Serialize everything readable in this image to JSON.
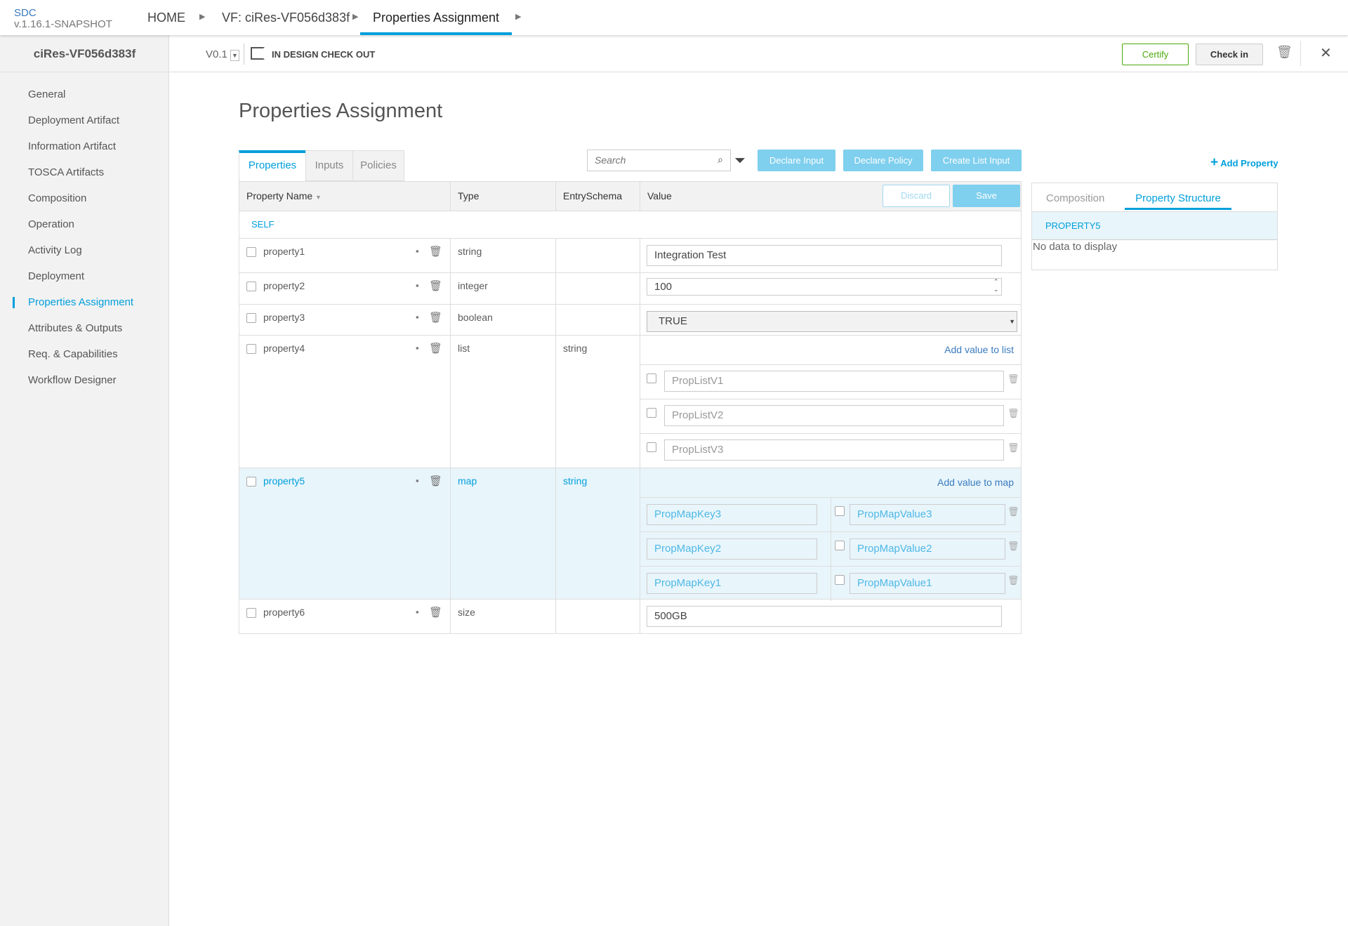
{
  "app": {
    "name": "SDC",
    "version": "v.1.16.1-SNAPSHOT"
  },
  "breadcrumb": [
    "HOME",
    "VF: ciRes-VF056d383f",
    "Properties Assignment"
  ],
  "resource": {
    "name": "ciRes-VF056d383f",
    "version": "V0.1",
    "status": "IN DESIGN CHECK OUT"
  },
  "actions": {
    "certify": "Certify",
    "checkin": "Check in"
  },
  "sidebar": {
    "items": [
      "General",
      "Deployment Artifact",
      "Information Artifact",
      "TOSCA Artifacts",
      "Composition",
      "Operation",
      "Activity Log",
      "Deployment",
      "Properties Assignment",
      "Attributes & Outputs",
      "Req. & Capabilities",
      "Workflow Designer"
    ],
    "active": "Properties Assignment"
  },
  "page": {
    "title": "Properties Assignment"
  },
  "tabs": [
    "Properties",
    "Inputs",
    "Policies"
  ],
  "search": {
    "placeholder": "Search"
  },
  "toolbar": {
    "declare_input": "Declare Input",
    "declare_policy": "Declare Policy",
    "create_list_input": "Create List Input",
    "add_property": "Add Property",
    "discard": "Discard",
    "save": "Save"
  },
  "table": {
    "headers": [
      "Property Name",
      "Type",
      "EntrySchema",
      "Value"
    ],
    "group": "SELF",
    "rows": [
      {
        "name": "property1",
        "type": "string",
        "schema": "",
        "value": "Integration Test"
      },
      {
        "name": "property2",
        "type": "integer",
        "schema": "",
        "value": "100"
      },
      {
        "name": "property3",
        "type": "boolean",
        "schema": "",
        "value": "TRUE"
      },
      {
        "name": "property4",
        "type": "list",
        "schema": "string",
        "add_label": "Add value to list",
        "items": [
          "PropListV1",
          "PropListV2",
          "PropListV3"
        ]
      },
      {
        "name": "property5",
        "type": "map",
        "schema": "string",
        "add_label": "Add value to map",
        "entries": [
          {
            "key": "PropMapKey3",
            "value": "PropMapValue3"
          },
          {
            "key": "PropMapKey2",
            "value": "PropMapValue2"
          },
          {
            "key": "PropMapKey1",
            "value": "PropMapValue1"
          }
        ]
      },
      {
        "name": "property6",
        "type": "size",
        "schema": "",
        "value": "500GB"
      }
    ]
  },
  "right_panel": {
    "tabs": [
      "Composition",
      "Property Structure"
    ],
    "active": "Property Structure",
    "header": "PROPERTY5",
    "empty": "No data to display"
  },
  "colors": {
    "accent": "#009fdb",
    "certify": "#4ca90c",
    "highlight": "#e8f5fb"
  }
}
